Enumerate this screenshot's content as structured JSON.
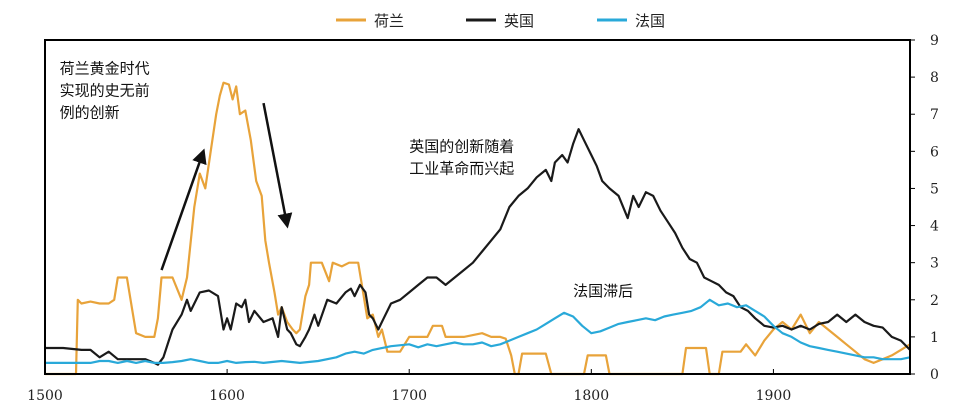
{
  "chart_data": {
    "type": "line",
    "title": "",
    "xlabel": "",
    "ylabel": "",
    "xlim": [
      1500,
      1975
    ],
    "ylim": [
      0,
      9
    ],
    "x_ticks": [
      1500,
      1600,
      1700,
      1800,
      1900
    ],
    "y_ticks": [
      0,
      1,
      2,
      3,
      4,
      5,
      6,
      7,
      8,
      9
    ],
    "y_axis_side": "right",
    "grid": false,
    "legend_position": "top-center",
    "series": [
      {
        "name": "荷兰",
        "color": "#e8a33a",
        "points": [
          [
            1500,
            0.0
          ],
          [
            1517,
            0.0
          ],
          [
            1518,
            2.0
          ],
          [
            1520,
            1.9
          ],
          [
            1525,
            1.95
          ],
          [
            1530,
            1.9
          ],
          [
            1535,
            1.9
          ],
          [
            1538,
            2.0
          ],
          [
            1540,
            2.6
          ],
          [
            1545,
            2.6
          ],
          [
            1548,
            1.7
          ],
          [
            1550,
            1.1
          ],
          [
            1555,
            1.0
          ],
          [
            1560,
            1.0
          ],
          [
            1562,
            1.5
          ],
          [
            1564,
            2.6
          ],
          [
            1570,
            2.6
          ],
          [
            1575,
            2.0
          ],
          [
            1578,
            2.6
          ],
          [
            1582,
            4.5
          ],
          [
            1585,
            5.4
          ],
          [
            1588,
            5.0
          ],
          [
            1591,
            6.0
          ],
          [
            1594,
            7.0
          ],
          [
            1596,
            7.5
          ],
          [
            1598,
            7.85
          ],
          [
            1601,
            7.8
          ],
          [
            1603,
            7.4
          ],
          [
            1605,
            7.75
          ],
          [
            1607,
            7.0
          ],
          [
            1610,
            7.1
          ],
          [
            1613,
            6.3
          ],
          [
            1616,
            5.2
          ],
          [
            1619,
            4.8
          ],
          [
            1621,
            3.6
          ],
          [
            1623,
            3.0
          ],
          [
            1626,
            2.2
          ],
          [
            1628,
            1.6
          ],
          [
            1630,
            1.8
          ],
          [
            1633,
            1.4
          ],
          [
            1636,
            1.2
          ],
          [
            1638,
            1.1
          ],
          [
            1640,
            1.2
          ],
          [
            1643,
            2.1
          ],
          [
            1645,
            2.4
          ],
          [
            1646,
            3.0
          ],
          [
            1652,
            3.0
          ],
          [
            1656,
            2.5
          ],
          [
            1658,
            3.0
          ],
          [
            1663,
            2.9
          ],
          [
            1667,
            3.0
          ],
          [
            1672,
            3.0
          ],
          [
            1675,
            2.1
          ],
          [
            1677,
            1.5
          ],
          [
            1680,
            1.6
          ],
          [
            1683,
            1.0
          ],
          [
            1685,
            1.2
          ],
          [
            1688,
            0.6
          ],
          [
            1695,
            0.6
          ],
          [
            1700,
            1.0
          ],
          [
            1710,
            1.0
          ],
          [
            1713,
            1.3
          ],
          [
            1718,
            1.3
          ],
          [
            1720,
            1.0
          ],
          [
            1730,
            1.0
          ],
          [
            1740,
            1.1
          ],
          [
            1745,
            1.0
          ],
          [
            1750,
            1.0
          ],
          [
            1753,
            0.95
          ],
          [
            1756,
            0.5
          ],
          [
            1758,
            0.0
          ],
          [
            1760,
            0.0
          ],
          [
            1762,
            0.55
          ],
          [
            1768,
            0.55
          ],
          [
            1772,
            0.55
          ],
          [
            1775,
            0.55
          ],
          [
            1778,
            0.0
          ],
          [
            1796,
            0.0
          ],
          [
            1798,
            0.5
          ],
          [
            1808,
            0.5
          ],
          [
            1810,
            0.0
          ],
          [
            1850,
            0.0
          ],
          [
            1852,
            0.7
          ],
          [
            1863,
            0.7
          ],
          [
            1865,
            0.0
          ],
          [
            1870,
            0.0
          ],
          [
            1872,
            0.6
          ],
          [
            1882,
            0.6
          ],
          [
            1885,
            0.8
          ],
          [
            1890,
            0.5
          ],
          [
            1895,
            0.9
          ],
          [
            1900,
            1.2
          ],
          [
            1905,
            1.4
          ],
          [
            1910,
            1.2
          ],
          [
            1915,
            1.6
          ],
          [
            1920,
            1.1
          ],
          [
            1925,
            1.4
          ],
          [
            1930,
            1.2
          ],
          [
            1935,
            1.0
          ],
          [
            1940,
            0.8
          ],
          [
            1945,
            0.6
          ],
          [
            1950,
            0.4
          ],
          [
            1955,
            0.3
          ],
          [
            1960,
            0.4
          ],
          [
            1965,
            0.5
          ],
          [
            1970,
            0.65
          ],
          [
            1975,
            0.8
          ]
        ]
      },
      {
        "name": "英国",
        "color": "#1a1a1a",
        "points": [
          [
            1500,
            0.7
          ],
          [
            1510,
            0.7
          ],
          [
            1520,
            0.65
          ],
          [
            1525,
            0.65
          ],
          [
            1530,
            0.45
          ],
          [
            1535,
            0.6
          ],
          [
            1540,
            0.4
          ],
          [
            1545,
            0.4
          ],
          [
            1550,
            0.4
          ],
          [
            1555,
            0.4
          ],
          [
            1560,
            0.3
          ],
          [
            1562,
            0.25
          ],
          [
            1565,
            0.45
          ],
          [
            1568,
            0.9
          ],
          [
            1570,
            1.2
          ],
          [
            1575,
            1.6
          ],
          [
            1578,
            2.0
          ],
          [
            1580,
            1.7
          ],
          [
            1585,
            2.2
          ],
          [
            1590,
            2.25
          ],
          [
            1595,
            2.1
          ],
          [
            1598,
            1.2
          ],
          [
            1600,
            1.5
          ],
          [
            1602,
            1.2
          ],
          [
            1605,
            1.9
          ],
          [
            1608,
            1.8
          ],
          [
            1610,
            2.0
          ],
          [
            1612,
            1.4
          ],
          [
            1615,
            1.7
          ],
          [
            1620,
            1.4
          ],
          [
            1625,
            1.5
          ],
          [
            1628,
            1.0
          ],
          [
            1630,
            1.8
          ],
          [
            1633,
            1.2
          ],
          [
            1635,
            1.1
          ],
          [
            1638,
            0.8
          ],
          [
            1640,
            0.75
          ],
          [
            1643,
            1.0
          ],
          [
            1645,
            1.2
          ],
          [
            1648,
            1.6
          ],
          [
            1650,
            1.3
          ],
          [
            1655,
            2.0
          ],
          [
            1660,
            1.9
          ],
          [
            1665,
            2.2
          ],
          [
            1668,
            2.3
          ],
          [
            1670,
            2.1
          ],
          [
            1673,
            2.4
          ],
          [
            1676,
            2.2
          ],
          [
            1678,
            1.6
          ],
          [
            1680,
            1.5
          ],
          [
            1683,
            1.2
          ],
          [
            1686,
            1.5
          ],
          [
            1690,
            1.9
          ],
          [
            1695,
            2.0
          ],
          [
            1700,
            2.2
          ],
          [
            1705,
            2.4
          ],
          [
            1710,
            2.6
          ],
          [
            1715,
            2.6
          ],
          [
            1720,
            2.4
          ],
          [
            1725,
            2.6
          ],
          [
            1730,
            2.8
          ],
          [
            1735,
            3.0
          ],
          [
            1740,
            3.3
          ],
          [
            1745,
            3.6
          ],
          [
            1750,
            3.9
          ],
          [
            1755,
            4.5
          ],
          [
            1760,
            4.8
          ],
          [
            1765,
            5.0
          ],
          [
            1770,
            5.3
          ],
          [
            1775,
            5.5
          ],
          [
            1778,
            5.2
          ],
          [
            1780,
            5.7
          ],
          [
            1784,
            5.9
          ],
          [
            1787,
            5.7
          ],
          [
            1790,
            6.2
          ],
          [
            1793,
            6.6
          ],
          [
            1796,
            6.3
          ],
          [
            1800,
            5.9
          ],
          [
            1803,
            5.6
          ],
          [
            1806,
            5.2
          ],
          [
            1810,
            5.0
          ],
          [
            1815,
            4.8
          ],
          [
            1820,
            4.2
          ],
          [
            1823,
            4.8
          ],
          [
            1826,
            4.5
          ],
          [
            1830,
            4.9
          ],
          [
            1834,
            4.8
          ],
          [
            1838,
            4.4
          ],
          [
            1842,
            4.1
          ],
          [
            1846,
            3.8
          ],
          [
            1850,
            3.4
          ],
          [
            1854,
            3.1
          ],
          [
            1858,
            3.0
          ],
          [
            1862,
            2.6
          ],
          [
            1866,
            2.5
          ],
          [
            1870,
            2.4
          ],
          [
            1874,
            2.2
          ],
          [
            1878,
            2.1
          ],
          [
            1882,
            1.8
          ],
          [
            1886,
            1.7
          ],
          [
            1890,
            1.5
          ],
          [
            1895,
            1.3
          ],
          [
            1900,
            1.25
          ],
          [
            1905,
            1.3
          ],
          [
            1910,
            1.2
          ],
          [
            1915,
            1.3
          ],
          [
            1920,
            1.2
          ],
          [
            1925,
            1.35
          ],
          [
            1930,
            1.4
          ],
          [
            1935,
            1.6
          ],
          [
            1940,
            1.4
          ],
          [
            1945,
            1.6
          ],
          [
            1950,
            1.4
          ],
          [
            1955,
            1.3
          ],
          [
            1960,
            1.25
          ],
          [
            1965,
            1.0
          ],
          [
            1970,
            0.9
          ],
          [
            1975,
            0.65
          ]
        ]
      },
      {
        "name": "法国",
        "color": "#29a9d9",
        "points": [
          [
            1500,
            0.3
          ],
          [
            1510,
            0.3
          ],
          [
            1520,
            0.3
          ],
          [
            1525,
            0.3
          ],
          [
            1530,
            0.35
          ],
          [
            1535,
            0.35
          ],
          [
            1540,
            0.3
          ],
          [
            1545,
            0.35
          ],
          [
            1550,
            0.3
          ],
          [
            1555,
            0.35
          ],
          [
            1560,
            0.3
          ],
          [
            1565,
            0.3
          ],
          [
            1570,
            0.32
          ],
          [
            1575,
            0.35
          ],
          [
            1580,
            0.4
          ],
          [
            1585,
            0.35
          ],
          [
            1590,
            0.3
          ],
          [
            1595,
            0.3
          ],
          [
            1600,
            0.35
          ],
          [
            1605,
            0.3
          ],
          [
            1610,
            0.32
          ],
          [
            1615,
            0.33
          ],
          [
            1620,
            0.3
          ],
          [
            1630,
            0.35
          ],
          [
            1640,
            0.3
          ],
          [
            1650,
            0.35
          ],
          [
            1660,
            0.45
          ],
          [
            1665,
            0.55
          ],
          [
            1670,
            0.6
          ],
          [
            1675,
            0.55
          ],
          [
            1680,
            0.65
          ],
          [
            1690,
            0.75
          ],
          [
            1700,
            0.8
          ],
          [
            1705,
            0.72
          ],
          [
            1710,
            0.8
          ],
          [
            1715,
            0.75
          ],
          [
            1720,
            0.8
          ],
          [
            1725,
            0.85
          ],
          [
            1730,
            0.8
          ],
          [
            1735,
            0.8
          ],
          [
            1740,
            0.85
          ],
          [
            1745,
            0.75
          ],
          [
            1750,
            0.8
          ],
          [
            1755,
            0.9
          ],
          [
            1760,
            1.0
          ],
          [
            1765,
            1.1
          ],
          [
            1770,
            1.2
          ],
          [
            1775,
            1.35
          ],
          [
            1780,
            1.5
          ],
          [
            1785,
            1.65
          ],
          [
            1790,
            1.55
          ],
          [
            1795,
            1.3
          ],
          [
            1800,
            1.1
          ],
          [
            1805,
            1.15
          ],
          [
            1810,
            1.25
          ],
          [
            1815,
            1.35
          ],
          [
            1820,
            1.4
          ],
          [
            1825,
            1.45
          ],
          [
            1830,
            1.5
          ],
          [
            1835,
            1.45
          ],
          [
            1840,
            1.55
          ],
          [
            1845,
            1.6
          ],
          [
            1850,
            1.65
          ],
          [
            1855,
            1.7
          ],
          [
            1860,
            1.8
          ],
          [
            1865,
            2.0
          ],
          [
            1870,
            1.85
          ],
          [
            1875,
            1.9
          ],
          [
            1880,
            1.8
          ],
          [
            1885,
            1.85
          ],
          [
            1890,
            1.7
          ],
          [
            1895,
            1.55
          ],
          [
            1900,
            1.3
          ],
          [
            1905,
            1.1
          ],
          [
            1910,
            1.0
          ],
          [
            1915,
            0.85
          ],
          [
            1920,
            0.75
          ],
          [
            1925,
            0.7
          ],
          [
            1930,
            0.65
          ],
          [
            1935,
            0.6
          ],
          [
            1940,
            0.55
          ],
          [
            1945,
            0.5
          ],
          [
            1950,
            0.45
          ],
          [
            1955,
            0.45
          ],
          [
            1960,
            0.4
          ],
          [
            1965,
            0.4
          ],
          [
            1970,
            0.4
          ],
          [
            1975,
            0.45
          ]
        ]
      }
    ],
    "annotations": [
      {
        "lines": [
          "荷兰黄金时代",
          "实现的史无前",
          "例的创新"
        ],
        "x": 1508,
        "y": 8.1
      },
      {
        "lines": [
          "英国的创新随着",
          "工业革命而兴起"
        ],
        "x": 1700,
        "y": 6.0
      },
      {
        "lines": [
          "法国滞后"
        ],
        "x": 1790,
        "y": 2.1
      }
    ],
    "arrows": [
      {
        "from": [
          1564,
          2.8
        ],
        "to": [
          1587,
          6.0
        ]
      },
      {
        "from": [
          1620,
          7.3
        ],
        "to": [
          1633,
          4.0
        ]
      }
    ]
  }
}
